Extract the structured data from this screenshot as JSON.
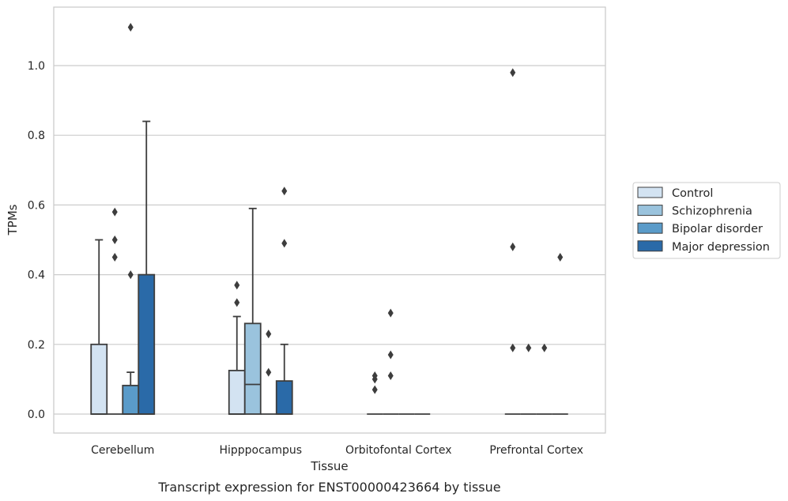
{
  "caption": "Transcript expression for ENST00000423664 by tissue",
  "chart_data": {
    "type": "box",
    "xlabel": "Tissue",
    "ylabel": "TPMs",
    "ylim": [
      -0.055,
      1.17
    ],
    "yticks": [
      0.0,
      0.2,
      0.4,
      0.6,
      0.8,
      1.0
    ],
    "ytick_labels": [
      "0.0",
      "0.2",
      "0.4",
      "0.6",
      "0.8",
      "1.0"
    ],
    "grid": "horizontal",
    "legend_position": "right",
    "categories": [
      "Cerebellum",
      "Hipppocampus",
      "Orbitofontal Cortex",
      "Prefrontal Cortex"
    ],
    "series": [
      {
        "name": "Control",
        "color": "#d3e3f2",
        "boxes": [
          {
            "q1": 0.0,
            "median": 0.0,
            "q3": 0.2,
            "whisker_low": 0.0,
            "whisker_high": 0.5,
            "outliers": []
          },
          {
            "q1": 0.0,
            "median": 0.0,
            "q3": 0.125,
            "whisker_low": 0.0,
            "whisker_high": 0.28,
            "outliers": [
              0.32,
              0.37
            ]
          },
          {
            "q1": 0.0,
            "median": 0.0,
            "q3": 0.0,
            "whisker_low": 0.0,
            "whisker_high": 0.0,
            "outliers": [
              0.07,
              0.1,
              0.11
            ]
          },
          {
            "q1": 0.0,
            "median": 0.0,
            "q3": 0.0,
            "whisker_low": 0.0,
            "whisker_high": 0.0,
            "outliers": [
              0.19,
              0.48,
              0.98
            ]
          }
        ]
      },
      {
        "name": "Schizophrenia",
        "color": "#9ac3dd",
        "boxes": [
          {
            "q1": 0.0,
            "median": 0.0,
            "q3": 0.0,
            "whisker_low": 0.0,
            "whisker_high": 0.0,
            "outliers": [
              0.45,
              0.5,
              0.58
            ]
          },
          {
            "q1": 0.0,
            "median": 0.085,
            "q3": 0.26,
            "whisker_low": 0.0,
            "whisker_high": 0.59,
            "outliers": []
          },
          {
            "q1": 0.0,
            "median": 0.0,
            "q3": 0.0,
            "whisker_low": 0.0,
            "whisker_high": 0.0,
            "outliers": [
              0.11,
              0.17,
              0.29
            ]
          },
          {
            "q1": 0.0,
            "median": 0.0,
            "q3": 0.0,
            "whisker_low": 0.0,
            "whisker_high": 0.0,
            "outliers": [
              0.19
            ]
          }
        ]
      },
      {
        "name": "Bipolar disorder",
        "color": "#5a9bc9",
        "boxes": [
          {
            "q1": 0.0,
            "median": 0.0,
            "q3": 0.082,
            "whisker_low": 0.0,
            "whisker_high": 0.12,
            "outliers": [
              0.4,
              1.11
            ]
          },
          {
            "q1": 0.0,
            "median": 0.0,
            "q3": 0.0,
            "whisker_low": 0.0,
            "whisker_high": 0.0,
            "outliers": [
              0.12,
              0.23
            ]
          },
          {
            "q1": 0.0,
            "median": 0.0,
            "q3": 0.0,
            "whisker_low": 0.0,
            "whisker_high": 0.0,
            "outliers": []
          },
          {
            "q1": 0.0,
            "median": 0.0,
            "q3": 0.0,
            "whisker_low": 0.0,
            "whisker_high": 0.0,
            "outliers": [
              0.19
            ]
          }
        ]
      },
      {
        "name": "Major depression",
        "color": "#2a6aa8",
        "boxes": [
          {
            "q1": 0.0,
            "median": 0.0,
            "q3": 0.4,
            "whisker_low": 0.0,
            "whisker_high": 0.84,
            "outliers": []
          },
          {
            "q1": 0.0,
            "median": 0.0,
            "q3": 0.095,
            "whisker_low": 0.0,
            "whisker_high": 0.2,
            "outliers": [
              0.49,
              0.64
            ]
          },
          {
            "q1": 0.0,
            "median": 0.0,
            "q3": 0.0,
            "whisker_low": 0.0,
            "whisker_high": 0.0,
            "outliers": []
          },
          {
            "q1": 0.0,
            "median": 0.0,
            "q3": 0.0,
            "whisker_low": 0.0,
            "whisker_high": 0.0,
            "outliers": [
              0.45
            ]
          }
        ]
      }
    ]
  }
}
